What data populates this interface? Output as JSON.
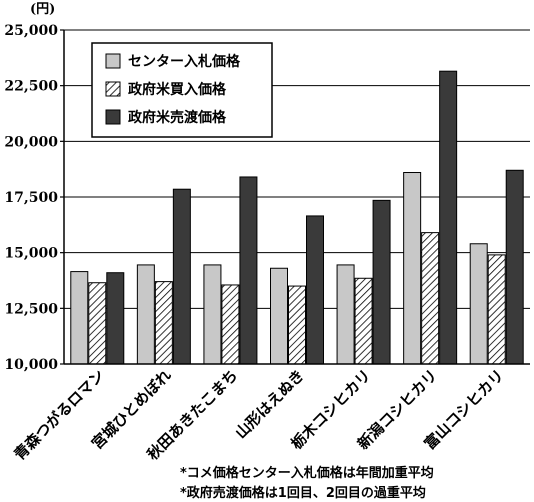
{
  "chart_data": {
    "type": "bar",
    "unit": "(円)",
    "categories": [
      "青森つがるロマン",
      "宮城ひとめぼれ",
      "秋田あきたこまち",
      "山形はえぬき",
      "栃木コシヒカリ",
      "新潟コシヒカリ",
      "富山コシヒカリ"
    ],
    "series": [
      {
        "name": "センター入札価格",
        "values": [
          14150,
          14450,
          14450,
          14300,
          14450,
          18600,
          15400
        ],
        "fill": "#c8c8c8"
      },
      {
        "name": "政府米買入価格",
        "values": [
          13650,
          13700,
          13550,
          13500,
          13850,
          15900,
          14900
        ],
        "fill": "hatch"
      },
      {
        "name": "政府米売渡価格",
        "values": [
          14100,
          17850,
          18400,
          16650,
          17350,
          23150,
          18700
        ],
        "fill": "#3a3a3a"
      }
    ],
    "yticks": [
      "10,000",
      "12,500",
      "15,000",
      "17,500",
      "20,000",
      "22,500",
      "25,000"
    ],
    "ylim": [
      10000,
      25000
    ],
    "legend_position": "top-left",
    "notes": [
      "*コメ価格センター入札価格は年間加重平均",
      "*政府売渡価格は1回目、2回目の過重平均"
    ]
  }
}
